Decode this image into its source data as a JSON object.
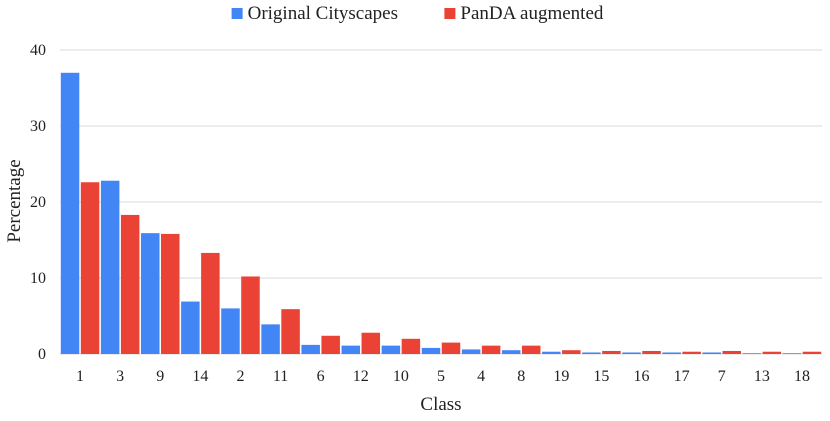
{
  "chart_data": {
    "type": "bar",
    "title": "",
    "xlabel": "Class",
    "ylabel": "Percentage",
    "ylim": [
      0,
      40
    ],
    "yticks": [
      0,
      10,
      20,
      30,
      40
    ],
    "grid": true,
    "legend_position": "top-center",
    "categories": [
      "1",
      "3",
      "9",
      "14",
      "2",
      "11",
      "6",
      "12",
      "10",
      "5",
      "4",
      "8",
      "19",
      "15",
      "16",
      "17",
      "7",
      "13",
      "18"
    ],
    "series": [
      {
        "name": "Original Cityscapes",
        "color": "#4285f4",
        "values": [
          37.0,
          22.8,
          15.9,
          6.9,
          6.0,
          3.9,
          1.2,
          1.1,
          1.1,
          0.8,
          0.6,
          0.5,
          0.3,
          0.2,
          0.2,
          0.2,
          0.2,
          0.1,
          0.1
        ]
      },
      {
        "name": "PanDA augmented",
        "color": "#ea4335",
        "values": [
          22.6,
          18.3,
          15.8,
          13.3,
          10.2,
          5.9,
          2.4,
          2.8,
          2.0,
          1.5,
          1.1,
          1.1,
          0.5,
          0.4,
          0.4,
          0.3,
          0.4,
          0.3,
          0.3
        ]
      }
    ]
  }
}
